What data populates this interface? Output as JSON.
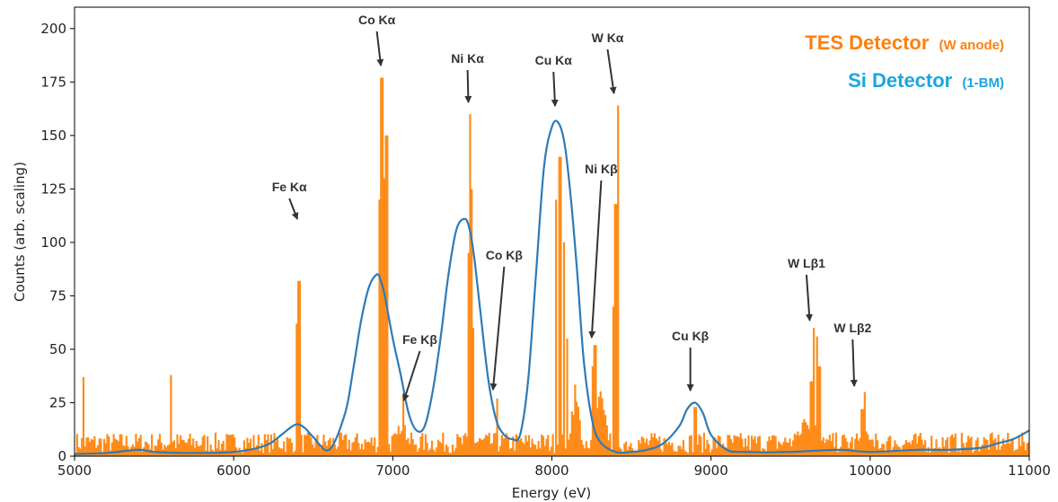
{
  "chart_data": {
    "type": "bar",
    "xlabel": "Energy (eV)",
    "ylabel": "Counts (arb. scaling)",
    "xlim": [
      5000,
      11000
    ],
    "ylim": [
      0,
      210
    ],
    "xticks": [
      5000,
      6000,
      7000,
      8000,
      9000,
      10000,
      11000
    ],
    "yticks": [
      0,
      25,
      50,
      75,
      100,
      125,
      150,
      175,
      200
    ],
    "grid": false,
    "legend_position": "top-right",
    "colors": {
      "tes": "#ff8c1a",
      "si": "#2e7ab6",
      "si_text": "#1aa6e0",
      "tes_text": "#ff7f0e"
    },
    "legend": [
      {
        "name": "TES Detector",
        "detail": "(W anode)",
        "color": "#ff7f0e"
      },
      {
        "name": "Si Detector",
        "detail": "(1-BM)",
        "color": "#1aa6e0"
      }
    ],
    "series": [
      {
        "name": "TES Detector",
        "kind": "histogram",
        "baseline_level": 6,
        "peaks": [
          {
            "e": 5050,
            "c": 37
          },
          {
            "e": 5600,
            "c": 38
          },
          {
            "e": 6405,
            "c": 82
          },
          {
            "e": 6395,
            "c": 62
          },
          {
            "e": 6390,
            "c": 40
          },
          {
            "e": 6925,
            "c": 177
          },
          {
            "e": 6915,
            "c": 120
          },
          {
            "e": 6935,
            "c": 130
          },
          {
            "e": 6955,
            "c": 150
          },
          {
            "e": 7060,
            "c": 28
          },
          {
            "e": 7478,
            "c": 160
          },
          {
            "e": 7470,
            "c": 95
          },
          {
            "e": 7490,
            "c": 125
          },
          {
            "e": 7500,
            "c": 60
          },
          {
            "e": 7650,
            "c": 27
          },
          {
            "e": 8020,
            "c": 120
          },
          {
            "e": 8045,
            "c": 140
          },
          {
            "e": 8070,
            "c": 100
          },
          {
            "e": 8090,
            "c": 55
          },
          {
            "e": 8265,
            "c": 52
          },
          {
            "e": 8250,
            "c": 42
          },
          {
            "e": 8395,
            "c": 118
          },
          {
            "e": 8410,
            "c": 164
          },
          {
            "e": 8385,
            "c": 70
          },
          {
            "e": 8895,
            "c": 23
          },
          {
            "e": 9640,
            "c": 60
          },
          {
            "e": 9660,
            "c": 56
          },
          {
            "e": 9675,
            "c": 42
          },
          {
            "e": 9625,
            "c": 35
          },
          {
            "e": 9960,
            "c": 30
          },
          {
            "e": 9945,
            "c": 22
          }
        ],
        "shoulders": [
          {
            "e": 7050,
            "c": 18,
            "w": 80
          },
          {
            "e": 8140,
            "c": 35,
            "w": 60
          },
          {
            "e": 8300,
            "c": 30,
            "w": 80
          },
          {
            "e": 9600,
            "c": 22,
            "w": 140
          },
          {
            "e": 9960,
            "c": 15,
            "w": 80
          }
        ]
      },
      {
        "name": "Si Detector",
        "kind": "line",
        "x": [
          5000,
          5200,
          5400,
          5500,
          5700,
          6000,
          6200,
          6300,
          6350,
          6400,
          6450,
          6500,
          6600,
          6700,
          6750,
          6800,
          6850,
          6900,
          6925,
          6950,
          7000,
          7050,
          7100,
          7150,
          7200,
          7250,
          7300,
          7350,
          7400,
          7450,
          7480,
          7510,
          7550,
          7600,
          7650,
          7700,
          7750,
          7800,
          7850,
          7900,
          7950,
          8000,
          8040,
          8080,
          8120,
          8160,
          8200,
          8250,
          8300,
          8400,
          8500,
          8600,
          8700,
          8800,
          8850,
          8900,
          8950,
          9000,
          9100,
          9200,
          9500,
          9800,
          10000,
          10300,
          10500,
          10700,
          10800,
          10900,
          11000
        ],
        "y": [
          1,
          1.5,
          3,
          2,
          1.5,
          2,
          5,
          10,
          13,
          15,
          13,
          9,
          3,
          20,
          40,
          63,
          79,
          85,
          82,
          75,
          55,
          38,
          20,
          12,
          14,
          30,
          55,
          85,
          106,
          111,
          107,
          94,
          68,
          36,
          17,
          10,
          8,
          10,
          35,
          85,
          135,
          154,
          156,
          146,
          120,
          85,
          45,
          18,
          7,
          2,
          2,
          3,
          6,
          14,
          22,
          25,
          20,
          10,
          3,
          2,
          2,
          3,
          2,
          3,
          3,
          4,
          6,
          8,
          12
        ]
      }
    ],
    "annotations": [
      {
        "label": "Fe Kα",
        "text_x": 6350,
        "text_y": 213,
        "tip_x": 6400,
        "tip_y": 244
      },
      {
        "label": "Co Kα",
        "text_x": 6900,
        "text_y": 27,
        "tip_x": 6925,
        "tip_y": 73
      },
      {
        "label": "Ni Kα",
        "text_x": 7470,
        "text_y": 70,
        "tip_x": 7475,
        "tip_y": 114
      },
      {
        "label": "Cu Kα",
        "text_x": 8010,
        "text_y": 72,
        "tip_x": 8020,
        "tip_y": 118
      },
      {
        "label": "W Kα",
        "text_x": 8350,
        "text_y": 47,
        "tip_x": 8390,
        "tip_y": 104
      },
      {
        "label": "Ni Kβ",
        "text_x": 8310,
        "text_y": 193,
        "tip_x": 8250,
        "tip_y": 376
      },
      {
        "label": "Co Kβ",
        "text_x": 7700,
        "text_y": 289,
        "tip_x": 7630,
        "tip_y": 434
      },
      {
        "label": "Fe Kβ",
        "text_x": 7170,
        "text_y": 383,
        "tip_x": 7070,
        "tip_y": 446
      },
      {
        "label": "Cu Kβ",
        "text_x": 8870,
        "text_y": 379,
        "tip_x": 8870,
        "tip_y": 435
      },
      {
        "label": "W Lβ1",
        "text_x": 9600,
        "text_y": 298,
        "tip_x": 9620,
        "tip_y": 357
      },
      {
        "label": "W Lβ2",
        "text_x": 9890,
        "text_y": 370,
        "tip_x": 9900,
        "tip_y": 430
      }
    ]
  }
}
